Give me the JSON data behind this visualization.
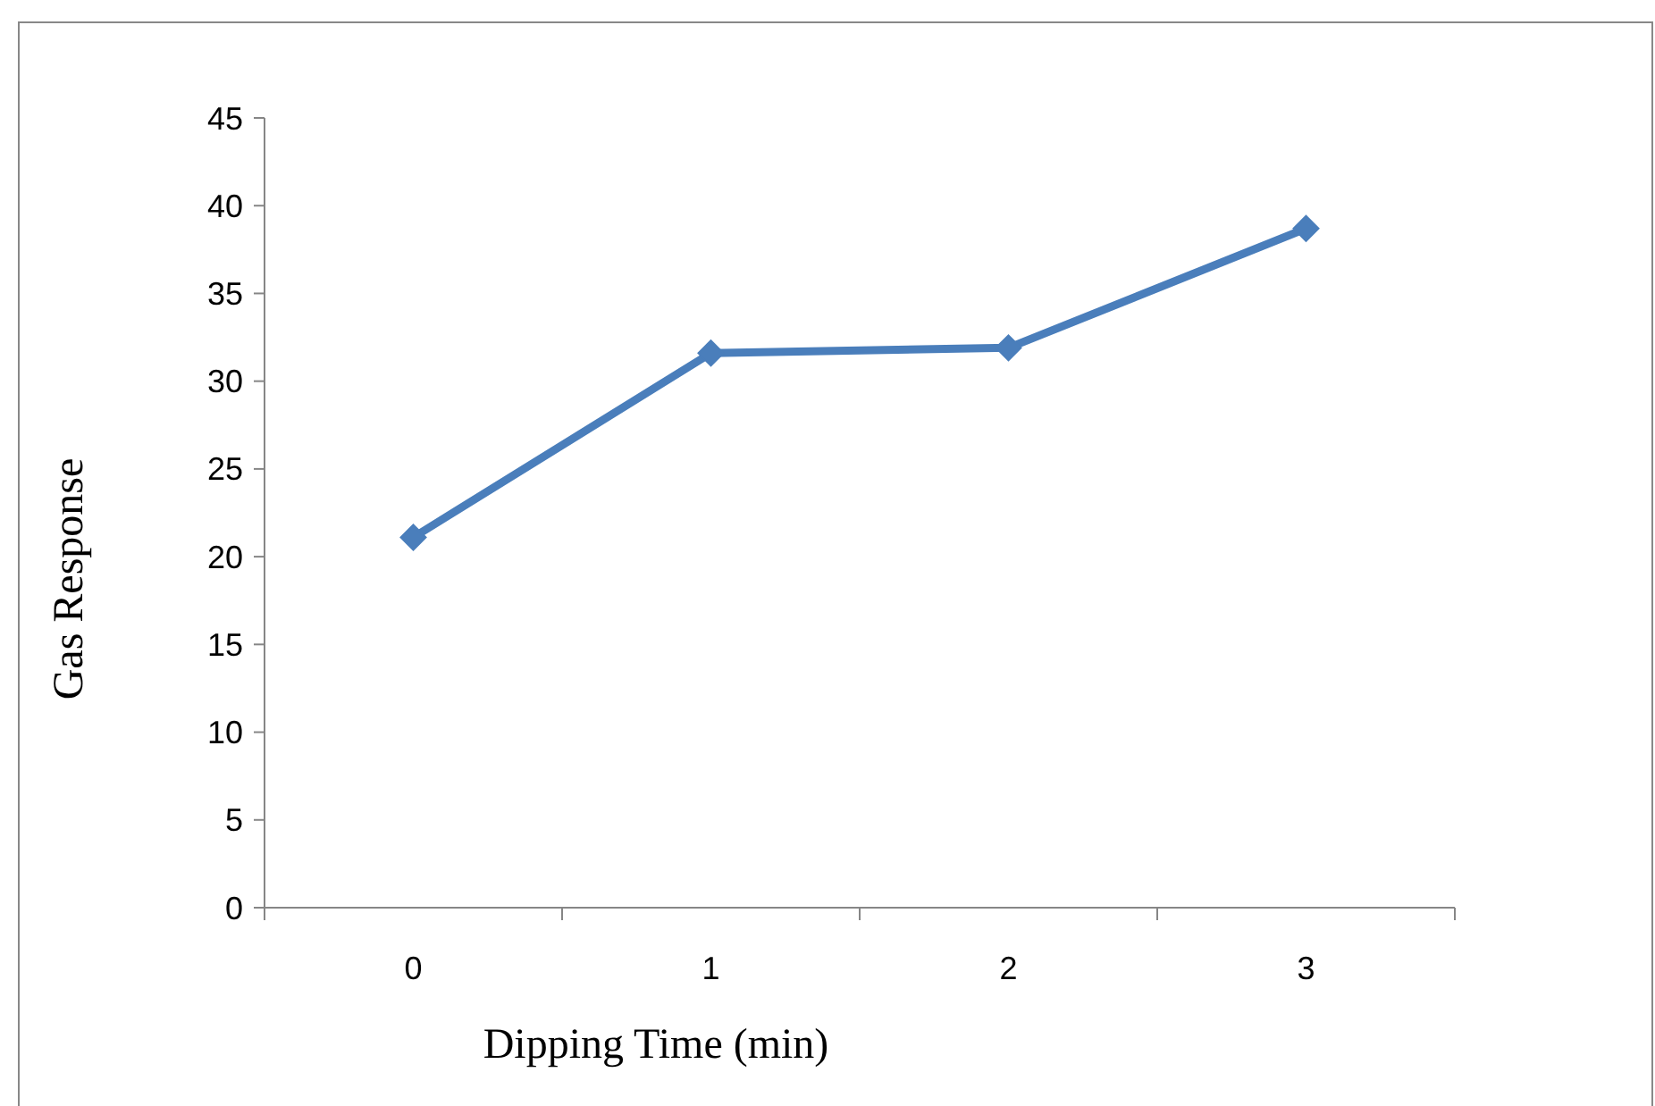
{
  "chart_data": {
    "type": "line",
    "xlabel": "Dipping Time (min)",
    "ylabel": "Gas Response",
    "categories": [
      "0",
      "1",
      "2",
      "3"
    ],
    "series": [
      {
        "color": "#4a7ebb",
        "values": [
          21.1,
          31.6,
          31.9,
          38.7
        ]
      }
    ],
    "ylim": [
      0,
      45
    ],
    "yticks": [
      0,
      5,
      10,
      15,
      20,
      25,
      30,
      35,
      40,
      45
    ],
    "marker": "diamond",
    "line_style": "solid",
    "grid": false
  }
}
